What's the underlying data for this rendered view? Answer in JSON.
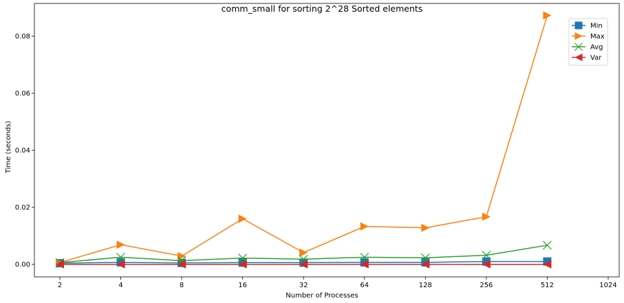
{
  "chart_data": {
    "type": "line",
    "title": "comm_small for sorting 2^28 Sorted elements",
    "xlabel": "Number of Processes",
    "ylabel": "Time (seconds)",
    "x_scale": "log2",
    "xlim": [
      2,
      1024
    ],
    "ylim": [
      -0.0044,
      0.0915
    ],
    "x_ticks": [
      2,
      4,
      8,
      16,
      32,
      64,
      128,
      256,
      512,
      1024
    ],
    "x_tick_labels": [
      "2",
      "4",
      "8",
      "16",
      "32",
      "64",
      "128",
      "256",
      "512",
      "1024"
    ],
    "y_ticks": [
      0.0,
      0.02,
      0.04,
      0.06,
      0.08
    ],
    "y_tick_labels": [
      "0.00",
      "0.02",
      "0.04",
      "0.06",
      "0.08"
    ],
    "legend_position": "top-right",
    "grid": false,
    "x": [
      2,
      4,
      8,
      16,
      32,
      64,
      128,
      256,
      512
    ],
    "series": [
      {
        "name": "Min",
        "color": "#1f77b4",
        "marker": "square",
        "values": [
          0.0004,
          0.0007,
          0.0005,
          0.0006,
          0.0006,
          0.0007,
          0.0007,
          0.001,
          0.001
        ]
      },
      {
        "name": "Max",
        "color": "#ff7f0e",
        "marker": "triangle-right",
        "values": [
          0.0006,
          0.0069,
          0.0029,
          0.016,
          0.0041,
          0.0133,
          0.0128,
          0.0167,
          0.0873
        ]
      },
      {
        "name": "Avg",
        "color": "#2ca02c",
        "marker": "x",
        "values": [
          0.0006,
          0.0025,
          0.0013,
          0.0022,
          0.0018,
          0.0025,
          0.0023,
          0.0032,
          0.0067
        ]
      },
      {
        "name": "Var",
        "color": "#d62728",
        "marker": "triangle-left",
        "values": [
          0.0,
          0.0,
          0.0,
          0.0,
          0.0,
          0.0,
          0.0,
          0.0,
          0.0
        ]
      }
    ]
  }
}
